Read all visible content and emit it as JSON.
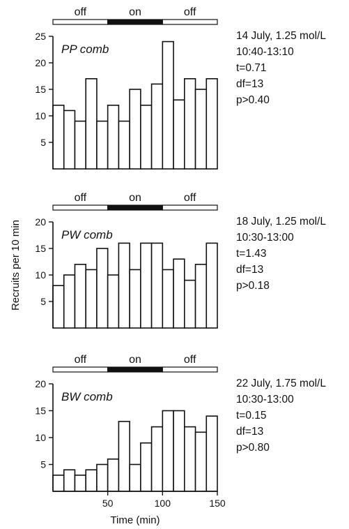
{
  "chart_data": [
    {
      "type": "bar",
      "title": "PP comb",
      "phases": [
        "off",
        "on",
        "off"
      ],
      "x_centers": [
        5,
        15,
        25,
        35,
        45,
        55,
        65,
        75,
        85,
        95,
        105,
        115,
        125,
        135,
        145
      ],
      "values": [
        12,
        11,
        9,
        17,
        9,
        12,
        9,
        15,
        12,
        16,
        24,
        13,
        17,
        15,
        17
      ],
      "ylim": [
        0,
        25
      ],
      "yticks": [
        5,
        10,
        15,
        20,
        25
      ],
      "annotations": [
        "14 July, 1.25 mol/L",
        "10:40-13:10",
        "t=0.71",
        "df=13",
        "p>0.40"
      ]
    },
    {
      "type": "bar",
      "title": "PW comb",
      "phases": [
        "off",
        "on",
        "off"
      ],
      "x_centers": [
        5,
        15,
        25,
        35,
        45,
        55,
        65,
        75,
        85,
        95,
        105,
        115,
        125,
        135,
        145
      ],
      "values": [
        8,
        10,
        12,
        11,
        15,
        10,
        16,
        11,
        16,
        16,
        11,
        13,
        9,
        12,
        16
      ],
      "ylim": [
        0,
        20
      ],
      "yticks": [
        5,
        10,
        15,
        20
      ],
      "annotations": [
        "18 July, 1.25 mol/L",
        "10:30-13:00",
        "t=1.43",
        "df=13",
        "p>0.18"
      ]
    },
    {
      "type": "bar",
      "title": "BW comb",
      "phases": [
        "off",
        "on",
        "off"
      ],
      "x_centers": [
        5,
        15,
        25,
        35,
        45,
        55,
        65,
        75,
        85,
        95,
        105,
        115,
        125,
        135,
        145
      ],
      "values": [
        3,
        4,
        3,
        4,
        5,
        6,
        13,
        5,
        9,
        12,
        15,
        15,
        12,
        11,
        14
      ],
      "ylim": [
        0,
        20
      ],
      "yticks": [
        5,
        10,
        15,
        20
      ],
      "xlim": [
        0,
        150
      ],
      "xticks": [
        50,
        100,
        150
      ],
      "annotations": [
        "22 July, 1.75 mol/L",
        "10:30-13:00",
        "t=0.15",
        "df=13",
        "p>0.80"
      ]
    }
  ],
  "ylabel": "Recruits per 10 min",
  "xlabel": "Time (min)"
}
